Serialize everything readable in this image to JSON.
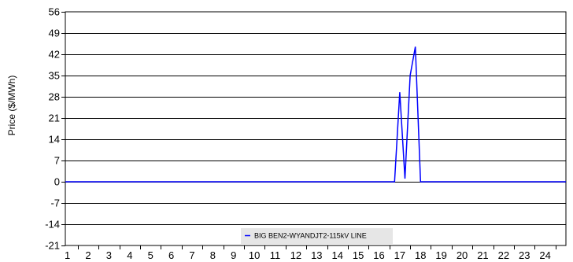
{
  "chart_data": {
    "type": "line",
    "ylabel": "Price ($/MWh)",
    "ylim": [
      -21,
      56
    ],
    "yticks": [
      "56",
      "49",
      "42",
      "35",
      "28",
      "21",
      "14",
      "7",
      "0",
      "-7",
      "-14",
      "-21"
    ],
    "xticks": [
      "1",
      "2",
      "3",
      "4",
      "5",
      "6",
      "7",
      "8",
      "9",
      "10",
      "11",
      "12",
      "13",
      "14",
      "15",
      "16",
      "17",
      "18",
      "19",
      "20",
      "21",
      "22",
      "23",
      "24"
    ],
    "xlim": [
      0.9,
      25.0
    ],
    "grid": "horizontal",
    "legend_position": "bottom-center",
    "colors": {
      "series": "#0000ff",
      "grid": "#000000",
      "legend_bg": "#e6e6e6"
    },
    "series": [
      {
        "name": "BIG BEN2-WYANDJT2-115kV LINE",
        "points": [
          [
            0.9,
            0
          ],
          [
            16.75,
            0
          ],
          [
            17.0,
            29.5
          ],
          [
            17.25,
            1.0
          ],
          [
            17.5,
            35.0
          ],
          [
            17.75,
            44.5
          ],
          [
            18.0,
            0
          ],
          [
            25.0,
            0
          ]
        ]
      }
    ]
  }
}
